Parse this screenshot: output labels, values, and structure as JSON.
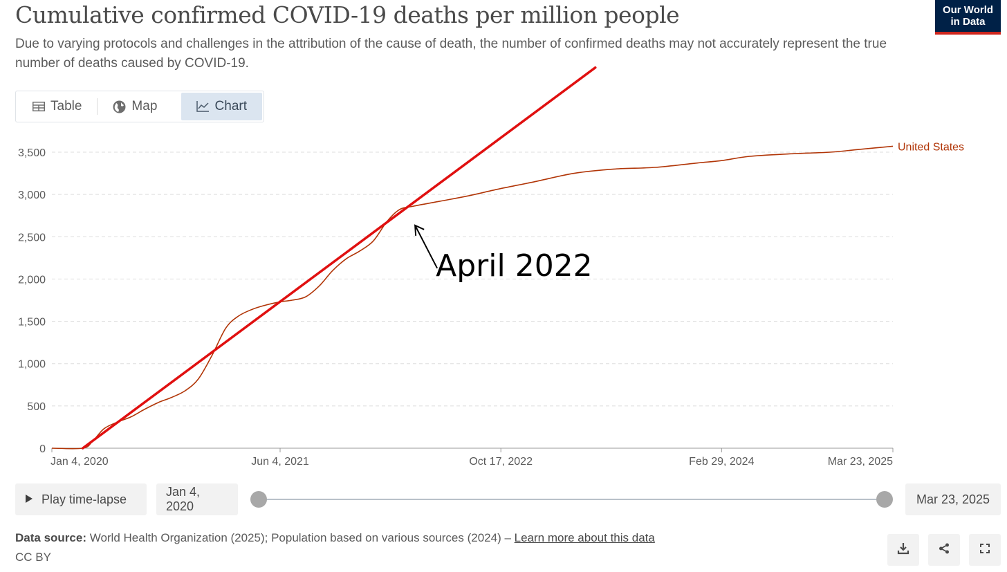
{
  "header": {
    "title": "Cumulative confirmed COVID-19 deaths per million people",
    "subtitle": "Due to varying protocols and challenges in the attribution of the cause of death, the number of confirmed deaths may not accurately represent the true number of deaths caused by COVID-19.",
    "logo_line1": "Our World",
    "logo_line2": "in Data"
  },
  "tabs": [
    {
      "label": "Table",
      "icon": "table-icon",
      "active": false
    },
    {
      "label": "Map",
      "icon": "globe-icon",
      "active": false
    },
    {
      "label": "Chart",
      "icon": "line-chart-icon",
      "active": true
    }
  ],
  "chart_data": {
    "type": "line",
    "title": "Cumulative confirmed COVID-19 deaths per million people",
    "xlabel": "",
    "ylabel": "",
    "x_type": "date",
    "xlim": [
      "2020-01-04",
      "2025-03-23"
    ],
    "ylim": [
      0,
      3500
    ],
    "y_ticks": [
      0,
      500,
      1000,
      1500,
      2000,
      2500,
      3000,
      3500
    ],
    "y_tick_labels": [
      "0",
      "500",
      "1,000",
      "1,500",
      "2,000",
      "2,500",
      "3,000",
      "3,500"
    ],
    "x_ticks": [
      "2020-01-04",
      "2021-06-04",
      "2022-10-17",
      "2024-02-29",
      "2025-03-23"
    ],
    "x_tick_labels": [
      "Jan 4, 2020",
      "Jun 4, 2021",
      "Oct 17, 2022",
      "Feb 29, 2024",
      "Mar 23, 2025"
    ],
    "grid": "horizontal dashed",
    "series": [
      {
        "name": "United States",
        "color": "#b13507",
        "points": [
          [
            "2020-01-04",
            0
          ],
          [
            "2020-03-14",
            0
          ],
          [
            "2020-04-05",
            80
          ],
          [
            "2020-05-01",
            230
          ],
          [
            "2020-06-01",
            310
          ],
          [
            "2020-07-01",
            370
          ],
          [
            "2020-08-01",
            460
          ],
          [
            "2020-09-01",
            540
          ],
          [
            "2020-10-01",
            600
          ],
          [
            "2020-11-01",
            680
          ],
          [
            "2020-12-01",
            820
          ],
          [
            "2021-01-01",
            1100
          ],
          [
            "2021-02-01",
            1420
          ],
          [
            "2021-03-01",
            1560
          ],
          [
            "2021-04-01",
            1640
          ],
          [
            "2021-05-01",
            1690
          ],
          [
            "2021-06-04",
            1730
          ],
          [
            "2021-07-01",
            1750
          ],
          [
            "2021-08-01",
            1790
          ],
          [
            "2021-09-01",
            1920
          ],
          [
            "2021-10-01",
            2100
          ],
          [
            "2021-11-01",
            2240
          ],
          [
            "2021-12-01",
            2330
          ],
          [
            "2022-01-01",
            2450
          ],
          [
            "2022-02-01",
            2680
          ],
          [
            "2022-03-01",
            2820
          ],
          [
            "2022-04-01",
            2860
          ],
          [
            "2022-06-01",
            2920
          ],
          [
            "2022-08-01",
            2980
          ],
          [
            "2022-10-17",
            3070
          ],
          [
            "2023-01-01",
            3150
          ],
          [
            "2023-04-01",
            3250
          ],
          [
            "2023-07-01",
            3300
          ],
          [
            "2023-10-01",
            3320
          ],
          [
            "2024-01-01",
            3370
          ],
          [
            "2024-02-29",
            3400
          ],
          [
            "2024-05-01",
            3450
          ],
          [
            "2024-08-01",
            3480
          ],
          [
            "2024-11-01",
            3500
          ],
          [
            "2025-01-01",
            3530
          ],
          [
            "2025-03-23",
            3570
          ]
        ]
      }
    ],
    "trend_line": {
      "color": "#e01010",
      "points": [
        [
          "2020-03-14",
          0
        ],
        [
          "2023-05-19",
          4500
        ]
      ]
    },
    "annotation": {
      "text": "April 2022",
      "arrow_to": [
        "2022-04-01",
        2700
      ]
    }
  },
  "controls": {
    "play_label": "Play time-lapse",
    "start_date": "Jan 4, 2020",
    "end_date": "Mar 23, 2025"
  },
  "footer": {
    "source_label": "Data source:",
    "source_text": " World Health Organization (2025); Population based on various sources (2024) – ",
    "learn_more": "Learn more about this data",
    "license": "CC BY"
  }
}
